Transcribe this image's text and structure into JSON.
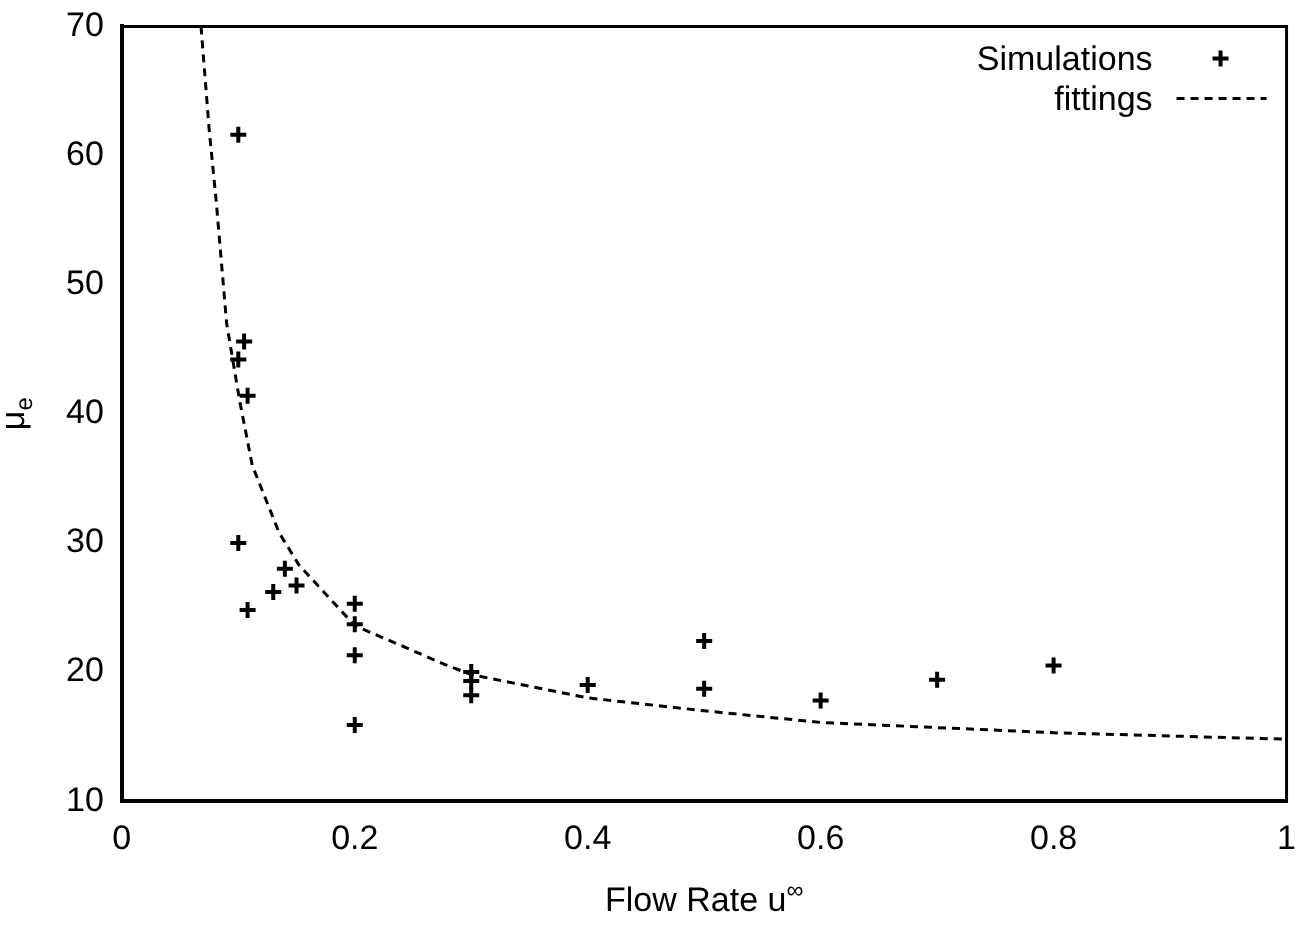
{
  "chart_data": {
    "type": "scatter",
    "xlabel": "Flow Rate u$^{∞}$",
    "ylabel": "μ$_{e}$",
    "xlim": [
      0,
      1
    ],
    "ylim": [
      10,
      70
    ],
    "xticks": [
      0,
      0.2,
      0.4,
      0.6,
      0.8,
      1
    ],
    "yticks": [
      10,
      20,
      30,
      40,
      50,
      60,
      70
    ],
    "grid": false,
    "legend": "top right",
    "series": [
      {
        "name": "Simulations",
        "type": "scatter",
        "marker": "cross",
        "color": "#000000",
        "x": [
          0.1,
          0.105,
          0.1,
          0.108,
          0.1,
          0.108,
          0.13,
          0.14,
          0.15,
          0.2,
          0.2,
          0.2,
          0.2,
          0.3,
          0.3,
          0.3,
          0.4,
          0.5,
          0.5,
          0.6,
          0.7,
          0.8
        ],
        "values": [
          61.6,
          45.6,
          44.2,
          41.4,
          30.0,
          24.8,
          26.2,
          28.0,
          26.7,
          25.3,
          23.7,
          21.3,
          15.9,
          20.0,
          19.3,
          18.2,
          19.0,
          22.4,
          18.7,
          17.8,
          19.4,
          20.5
        ]
      },
      {
        "name": "fittings",
        "type": "line",
        "marker": "none",
        "line_style": "dashed",
        "color": "#000000",
        "x": [
          0.068,
          0.075,
          0.081,
          0.09,
          0.101,
          0.112,
          0.135,
          0.152,
          0.2,
          0.277,
          0.3,
          0.4,
          0.5,
          0.6,
          0.8,
          1.0
        ],
        "values": [
          70,
          62,
          56.5,
          47,
          41.1,
          36,
          30.8,
          28.3,
          23.6,
          20.6,
          19.8,
          18.0,
          17.0,
          16.1,
          15.3,
          14.8
        ]
      }
    ]
  }
}
